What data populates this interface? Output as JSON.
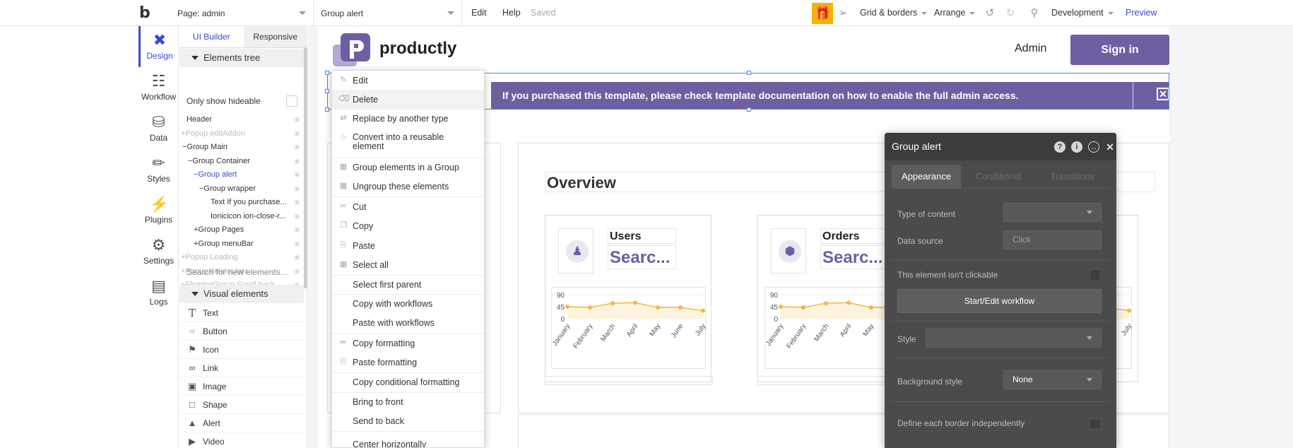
{
  "topbar": {
    "page_selector": "Page: admin",
    "element_selector": "Group alert",
    "edit": "Edit",
    "help": "Help",
    "saved": "Saved",
    "grid": "Grid & borders",
    "arrange": "Arrange",
    "environment": "Development",
    "preview": "Preview"
  },
  "rail": [
    {
      "label": "Design",
      "icon": "design-icon"
    },
    {
      "label": "Workflow",
      "icon": "workflow-icon"
    },
    {
      "label": "Data",
      "icon": "database-icon"
    },
    {
      "label": "Styles",
      "icon": "brush-icon"
    },
    {
      "label": "Plugins",
      "icon": "plug-icon"
    },
    {
      "label": "Settings",
      "icon": "gear-icon"
    },
    {
      "label": "Logs",
      "icon": "document-icon"
    }
  ],
  "panel": {
    "tabs": [
      "UI Builder",
      "Responsive"
    ],
    "tree_title": "Elements tree",
    "only_hideable": "Only show hideable",
    "tree": [
      "Header",
      "+Popup editAddon",
      "−Group Main",
      "−Group Container",
      "−Group alert",
      "−Group wrapper",
      "Text If you purchase...",
      "Ionicicon ion-close-r...",
      "+Group Pages",
      "+Group menuBar",
      "+Popup Loading",
      "+Popup deleteUser",
      "+FloatingGroup Scroll back ..."
    ],
    "search_placeholder": "Search for new elements...",
    "visual_title": "Visual elements",
    "visual": [
      "Text",
      "Button",
      "Icon",
      "Link",
      "Image",
      "Shape",
      "Alert",
      "Video"
    ]
  },
  "page": {
    "logo": "productly",
    "admin": "Admin",
    "signin": "Sign in",
    "alert_text": "If you purchased this template, please check template documentation on how to enable the full admin access.",
    "overview": "Overview",
    "cards": [
      {
        "label": "Users",
        "value": "Searc..."
      },
      {
        "label": "Orders",
        "value": "Searc..."
      }
    ]
  },
  "context_menu": [
    "Edit",
    "Delete",
    "Replace by another type",
    "Convert into a reusable element",
    "Group elements in a Group",
    "Ungroup these elements",
    "Cut",
    "Copy",
    "Paste",
    "Select all",
    "Select first parent",
    "Copy with workflows",
    "Paste with workflows",
    "Copy formatting",
    "Paste formatting",
    "Copy conditional formatting",
    "Bring to front",
    "Send to back",
    "Center horizontally"
  ],
  "property_editor": {
    "title": "Group alert",
    "tabs": [
      "Appearance",
      "Conditional",
      "Transitions"
    ],
    "type_of_content": "Type of content",
    "data_source": "Data source",
    "data_source_value": "Click",
    "not_clickable": "This element isn't clickable",
    "workflow_button": "Start/Edit workflow",
    "style": "Style",
    "background_style": "Background style",
    "background_value": "None",
    "border": "Define each border independently"
  },
  "chart_data": [
    {
      "type": "line",
      "categories": [
        "January",
        "February",
        "March",
        "April",
        "May",
        "June",
        "July"
      ],
      "yticks": [
        "90",
        "45",
        "0"
      ],
      "ylim": [
        0,
        90
      ],
      "series": [
        {
          "values": [
            45,
            42,
            58,
            60,
            42,
            42,
            30
          ]
        }
      ],
      "color": "#f5b740"
    },
    {
      "type": "line",
      "categories": [
        "January",
        "February",
        "March",
        "April",
        "May",
        "June",
        "July"
      ],
      "yticks": [
        "90",
        "45",
        "0"
      ],
      "ylim": [
        0,
        90
      ],
      "series": [
        {
          "values": [
            45,
            42,
            58,
            60,
            42,
            42,
            30
          ]
        }
      ],
      "color": "#f5b740"
    }
  ],
  "colors": {
    "accent": "#3a4bcf",
    "brand": "#6e5fa3",
    "gift": "#f5b300"
  }
}
